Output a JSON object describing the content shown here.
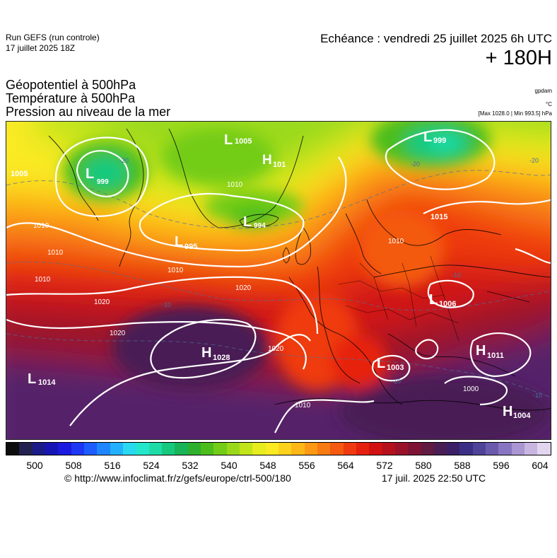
{
  "header": {
    "run_title": "Run GEFS (run controle)",
    "run_date": "17 juillet 2025 18Z",
    "valid_time": "Echéance : vendredi 25 juillet 2025 6h UTC",
    "horizon": "+ 180H"
  },
  "parameters": [
    "Géopotentiel à 500hPa",
    "Température à 500hPa",
    "Pression au niveau de la mer"
  ],
  "units": {
    "geopotential": "gpdam",
    "temperature": "°C",
    "pressure": "[Max 1028.0 | Min 993.5] hPa"
  },
  "pressure_centers": [
    {
      "type": "L",
      "value": "999",
      "region": "Baffin"
    },
    {
      "type": "L",
      "value": "1005",
      "region": "Greenland north"
    },
    {
      "type": "H",
      "value": "101",
      "region": "Greenland"
    },
    {
      "type": "L",
      "value": "999",
      "region": "Svalbard"
    },
    {
      "type": "L",
      "value": "994",
      "region": "Iceland"
    },
    {
      "type": "L",
      "value": "995",
      "region": "South Greenland"
    },
    {
      "type": "L",
      "value": "1015",
      "region": "Scandinavia"
    },
    {
      "type": "L",
      "value": "1006",
      "region": "Western Russia"
    },
    {
      "type": "H",
      "value": "1028",
      "region": "Azores"
    },
    {
      "type": "L",
      "value": "1003",
      "region": "Central Mediterranean"
    },
    {
      "type": "H",
      "value": "1011",
      "region": "Turkey"
    },
    {
      "type": "H",
      "value": "1004",
      "region": "Middle East"
    },
    {
      "type": "L",
      "value": "1014",
      "region": "West Atlantic"
    },
    {
      "type": "L",
      "value": "1005",
      "region": "Labrador"
    }
  ],
  "isobar_labels": [
    "1010",
    "1010",
    "1010",
    "1020",
    "1020",
    "1020",
    "1020",
    "1010",
    "1000",
    "1010",
    "1010",
    "1010"
  ],
  "isotherm_labels": [
    "-20",
    "-20",
    "-20",
    "-10",
    "-10",
    "-10",
    "-10"
  ],
  "legend": {
    "ticks": [
      "500",
      "508",
      "516",
      "524",
      "532",
      "540",
      "548",
      "556",
      "564",
      "572",
      "580",
      "588",
      "596",
      "604"
    ],
    "colors": [
      "#0d0d0d",
      "#22214f",
      "#1b1b8a",
      "#1616b4",
      "#1a1ae0",
      "#1e37f5",
      "#1e5cff",
      "#1f86ff",
      "#23b1ff",
      "#2ad9f0",
      "#23e6cc",
      "#1fdca7",
      "#16c97d",
      "#19b458",
      "#2eb02d",
      "#4cbd1d",
      "#73cc17",
      "#9ad91a",
      "#c1e41b",
      "#e6ec1e",
      "#faea22",
      "#fdd21d",
      "#fdb717",
      "#fb9914",
      "#f87a12",
      "#f45a10",
      "#ef3a10",
      "#e6200f",
      "#d11213",
      "#b5111d",
      "#9a1229",
      "#7d1434",
      "#611a40",
      "#4a1d54",
      "#3b2068",
      "#3a2f85",
      "#4f4399",
      "#6a59ad",
      "#8875c1",
      "#a996d2",
      "#c8b6e0",
      "#e2d5ef"
    ]
  },
  "footer": {
    "credit": "© http://www.infoclimat.fr/z/gefs/europe/ctrl-500/180",
    "timestamp": "17 juil. 2025 22:50 UTC"
  }
}
